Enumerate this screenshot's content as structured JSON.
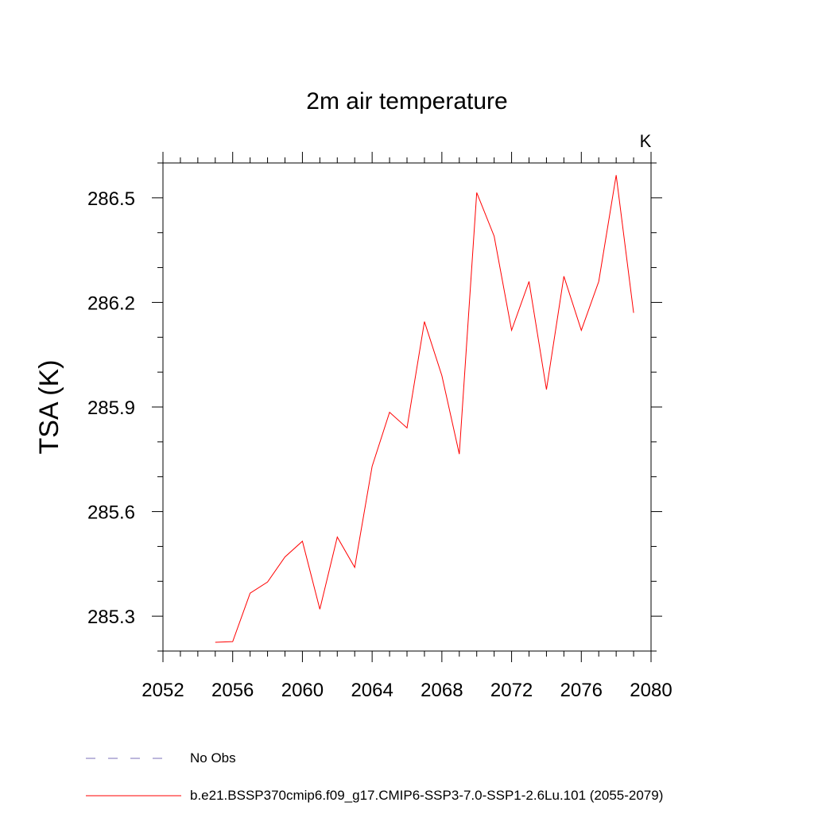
{
  "chart_data": {
    "type": "line",
    "title": "2m air temperature",
    "ylabel": "TSA  (K)",
    "units": "K",
    "xlim": [
      2052,
      2080
    ],
    "ylim": [
      285.2,
      286.6
    ],
    "xticks": [
      2052,
      2056,
      2060,
      2064,
      2068,
      2072,
      2076,
      2080
    ],
    "xtick_labels": [
      "2052",
      "2056",
      "2060",
      "2064",
      "2068",
      "2072",
      "2076",
      "2080"
    ],
    "yticks": [
      285.3,
      285.6,
      285.9,
      286.2,
      286.5
    ],
    "ytick_labels": [
      "285.3",
      "285.6",
      "285.9",
      "286.2",
      "286.5"
    ],
    "grid": false,
    "series": [
      {
        "name": "b.e21.BSSP370cmip6.f09_g17.CMIP6-SSP3-7.0-SSP1-2.6Lu.101 (2055-2079)",
        "color": "#ff0000",
        "dash": "solid",
        "x": [
          2055,
          2056,
          2057,
          2058,
          2059,
          2060,
          2061,
          2062,
          2063,
          2064,
          2065,
          2066,
          2067,
          2068,
          2069,
          2070,
          2071,
          2072,
          2073,
          2074,
          2075,
          2076,
          2077,
          2078,
          2079
        ],
        "y": [
          285.225,
          285.227,
          285.366,
          285.398,
          285.47,
          285.515,
          285.32,
          285.527,
          285.44,
          285.73,
          285.885,
          285.84,
          286.145,
          285.99,
          285.765,
          286.515,
          286.39,
          286.12,
          286.26,
          285.95,
          286.275,
          286.12,
          286.26,
          286.565,
          286.17
        ]
      },
      {
        "name": "No Obs",
        "color": "#7b6fb8",
        "dash": "dashed",
        "x": [],
        "y": []
      }
    ]
  }
}
